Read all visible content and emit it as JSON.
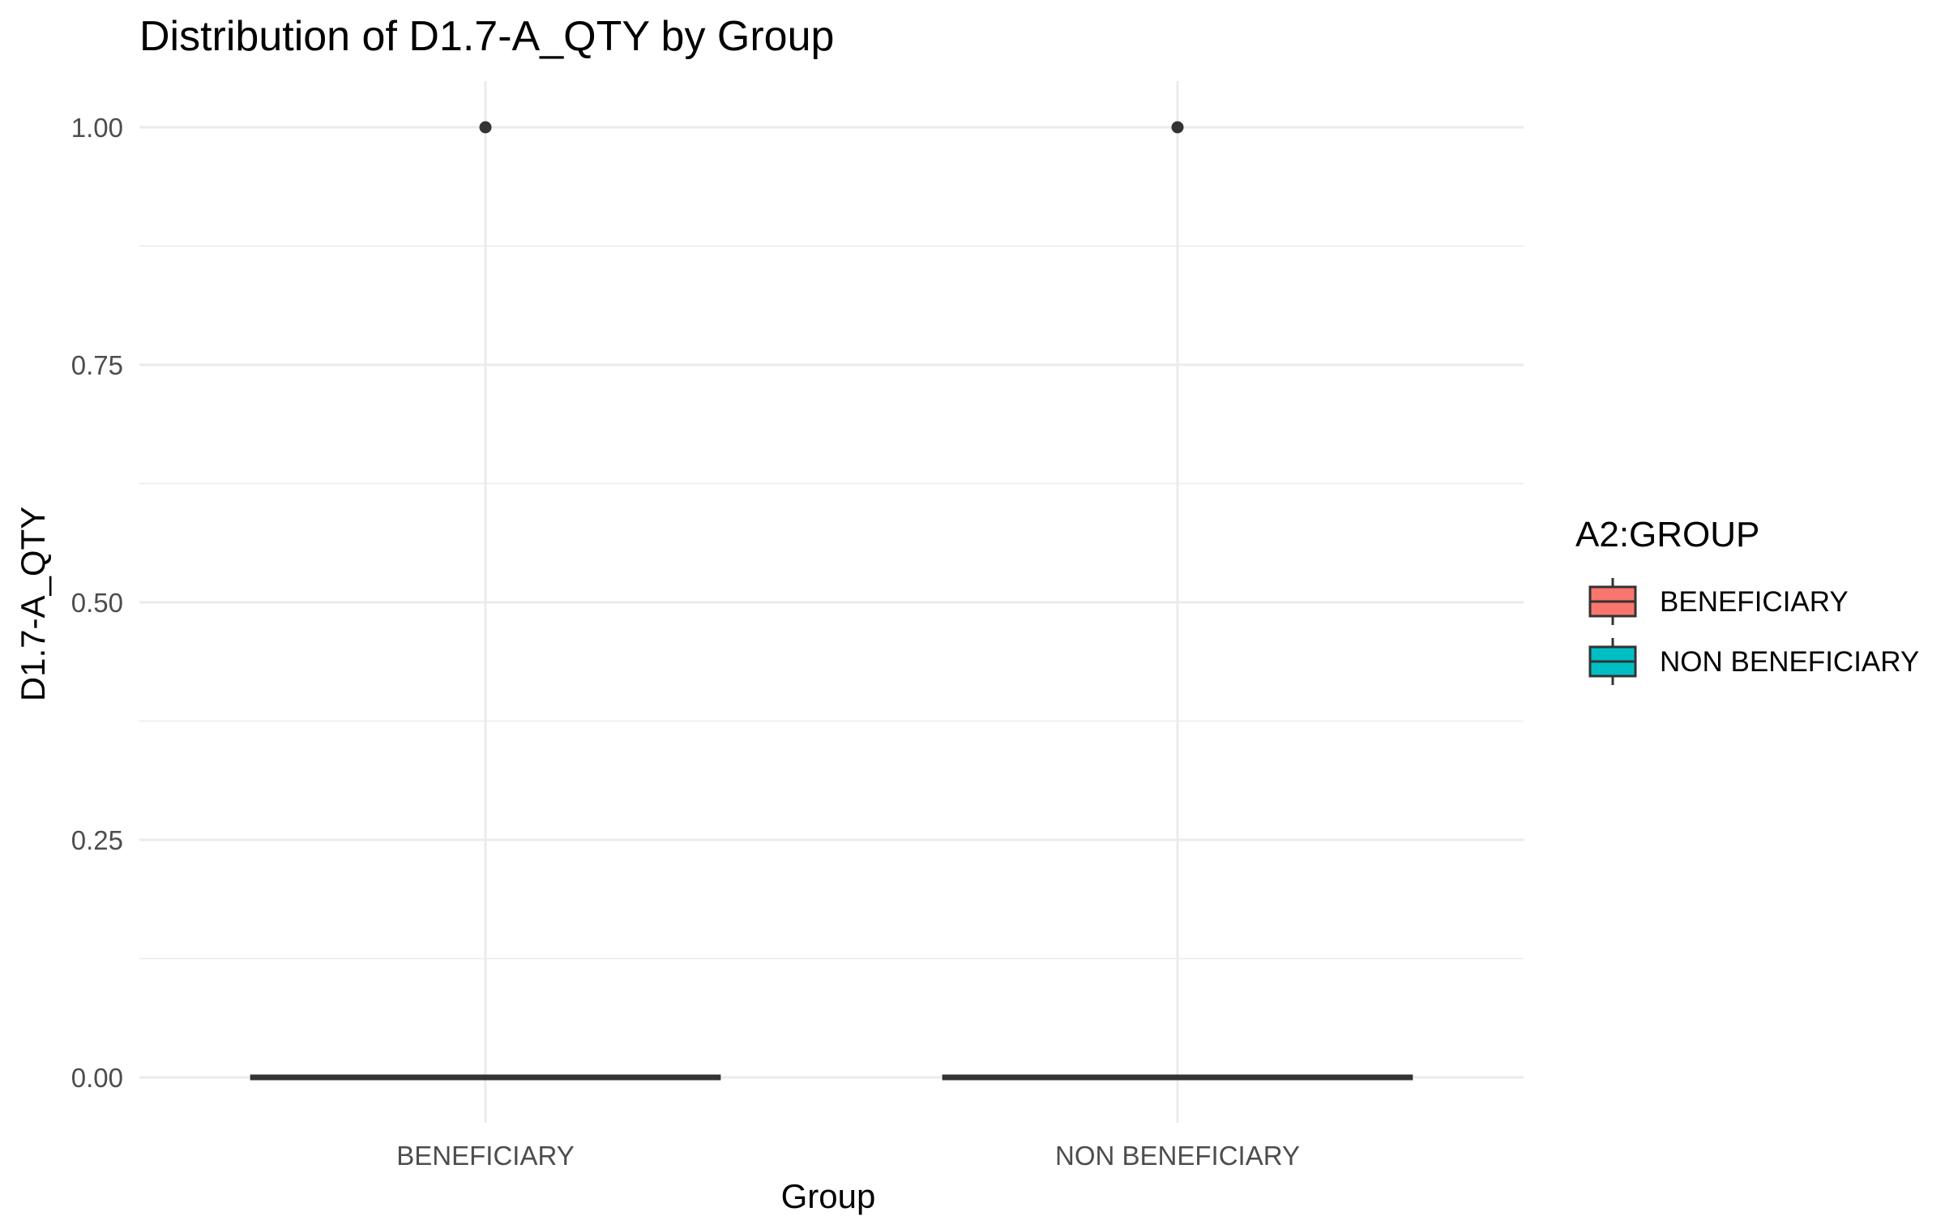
{
  "chart_data": {
    "type": "box",
    "title": "Distribution of D1.7-A_QTY by Group",
    "xlabel": "Group",
    "ylabel": "D1.7-A_QTY",
    "categories": [
      "BENEFICIARY",
      "NON BENEFICIARY"
    ],
    "y_ticks": [
      "0.00",
      "0.25",
      "0.50",
      "0.75",
      "1.00"
    ],
    "ylim": [
      -0.05,
      1.05
    ],
    "grid": true,
    "legend": {
      "title": "A2:GROUP",
      "position": "right",
      "entries": [
        {
          "label": "BENEFICIARY",
          "color": "#F8766D"
        },
        {
          "label": "NON BENEFICIARY",
          "color": "#00BFC4"
        }
      ]
    },
    "series": [
      {
        "name": "BENEFICIARY",
        "category": "BENEFICIARY",
        "min": 0,
        "q1": 0,
        "median": 0,
        "q3": 0,
        "max": 0,
        "outliers": [
          1
        ],
        "color": "#F8766D"
      },
      {
        "name": "NON BENEFICIARY",
        "category": "NON BENEFICIARY",
        "min": 0,
        "q1": 0,
        "median": 0,
        "q3": 0,
        "max": 0,
        "outliers": [
          1
        ],
        "color": "#00BFC4"
      }
    ],
    "colors": {
      "box_line": "#333333",
      "grid": "#ebebeb",
      "tick_text": "#4d4d4d",
      "title_text": "#000000"
    }
  }
}
